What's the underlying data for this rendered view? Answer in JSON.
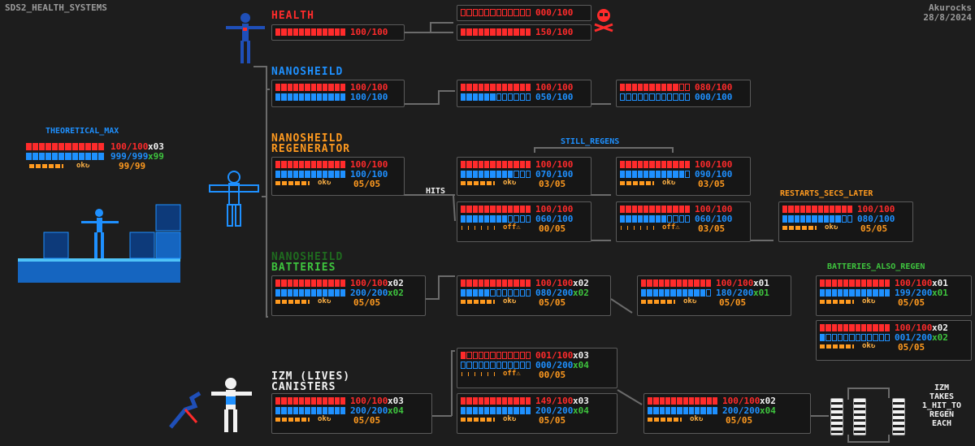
{
  "meta": {
    "title": "SDS2_HEALTH_SYSTEMS",
    "author": "Akurocks",
    "date": "28/8/2024"
  },
  "colors": {
    "health": "#ff2b2b",
    "shield": "#1e90ff",
    "regen": "#ff9a1f",
    "battery": "#3ec43e",
    "line": "#6b6b6b",
    "panel_border": "#5a5a5a"
  },
  "icons": {
    "death": "skull-crossbones-icon",
    "warning": "warning-icon",
    "regen": "regen-cycle-icon"
  },
  "headers": {
    "health": "HEALTH",
    "nanoshield": "NANOSHEILD",
    "regen_line1": "NANOSHEILD",
    "regen_line2": "REGENERATOR",
    "batt_line1": "NANOSHEILD",
    "batt_line2": "BATTERIES",
    "izm_line1": "IZM (LIVES)",
    "izm_line2": "CANISTERS"
  },
  "labels": {
    "theoretical_max": "THEORETICAL_MAX",
    "still_regens": "STILL_REGENS",
    "hits": "HITS",
    "restarts": "RESTARTS_SECS_LATER",
    "batteries_regen": "BATTERIES_ALSO_REGEN",
    "izm_note": [
      "IZM",
      "TAKES",
      "1_HIT_TO",
      "REGEN",
      "EACH"
    ]
  },
  "theoretical": {
    "hp": "100/100",
    "hp_mult": "x03",
    "shield": "999/999",
    "shield_mult": "x99",
    "regen": "99/99"
  },
  "health_row": {
    "main": {
      "hp": "100/100"
    },
    "dead": {
      "hp": "000/100"
    },
    "over": {
      "hp": "150/100"
    }
  },
  "nano_row": {
    "p1": {
      "hp": "100/100",
      "sh": "100/100"
    },
    "p2": {
      "hp": "100/100",
      "sh": "050/100"
    },
    "p3": {
      "hp": "080/100",
      "sh": "000/100"
    }
  },
  "regen_row": {
    "p1": {
      "hp": "100/100",
      "sh": "100/100",
      "rg": "05/05",
      "st": "ok"
    },
    "p2": {
      "hp": "100/100",
      "sh": "070/100",
      "rg": "03/05",
      "st": "ok"
    },
    "p3": {
      "hp": "100/100",
      "sh": "090/100",
      "rg": "03/05",
      "st": "ok"
    },
    "p4": {
      "hp": "100/100",
      "sh": "060/100",
      "rg": "00/05",
      "st": "off"
    },
    "p5": {
      "hp": "100/100",
      "sh": "060/100",
      "rg": "03/05",
      "st": "off"
    },
    "p6": {
      "hp": "100/100",
      "sh": "080/100",
      "rg": "05/05",
      "st": "ok"
    }
  },
  "batt_row": {
    "p1": {
      "hp": "100/100",
      "sh": "200/200",
      "mult": "x02",
      "rg": "05/05",
      "st": "ok"
    },
    "p2": {
      "hp": "100/100",
      "sh": "080/200",
      "mult": "x02",
      "rg": "05/05",
      "st": "ok"
    },
    "p3": {
      "hp": "100/100",
      "sh": "180/200",
      "mult": "x01",
      "rg": "05/05",
      "st": "ok"
    },
    "p4": {
      "hp": "100/100",
      "sh": "199/200",
      "mult": "x01",
      "rg": "05/05",
      "st": "ok"
    },
    "p5": {
      "hp": "100/100",
      "sh": "001/200",
      "mult": "x02",
      "rg": "05/05",
      "st": "ok"
    }
  },
  "izm_row": {
    "p1": {
      "hp": "100/100",
      "mult": "x03",
      "sh": "200/200",
      "smult": "x04",
      "rg": "05/05",
      "st": "ok"
    },
    "p2": {
      "hp": "001/100",
      "mult": "x03",
      "sh": "000/200",
      "smult": "x04",
      "rg": "00/05",
      "st": "off"
    },
    "p3": {
      "hp": "149/100",
      "mult": "x03",
      "sh": "200/200",
      "smult": "x04",
      "rg": "05/05",
      "st": "ok"
    },
    "p4": {
      "hp": "100/100",
      "mult": "x02",
      "sh": "200/200",
      "smult": "x04",
      "rg": "05/05",
      "st": "ok"
    }
  }
}
